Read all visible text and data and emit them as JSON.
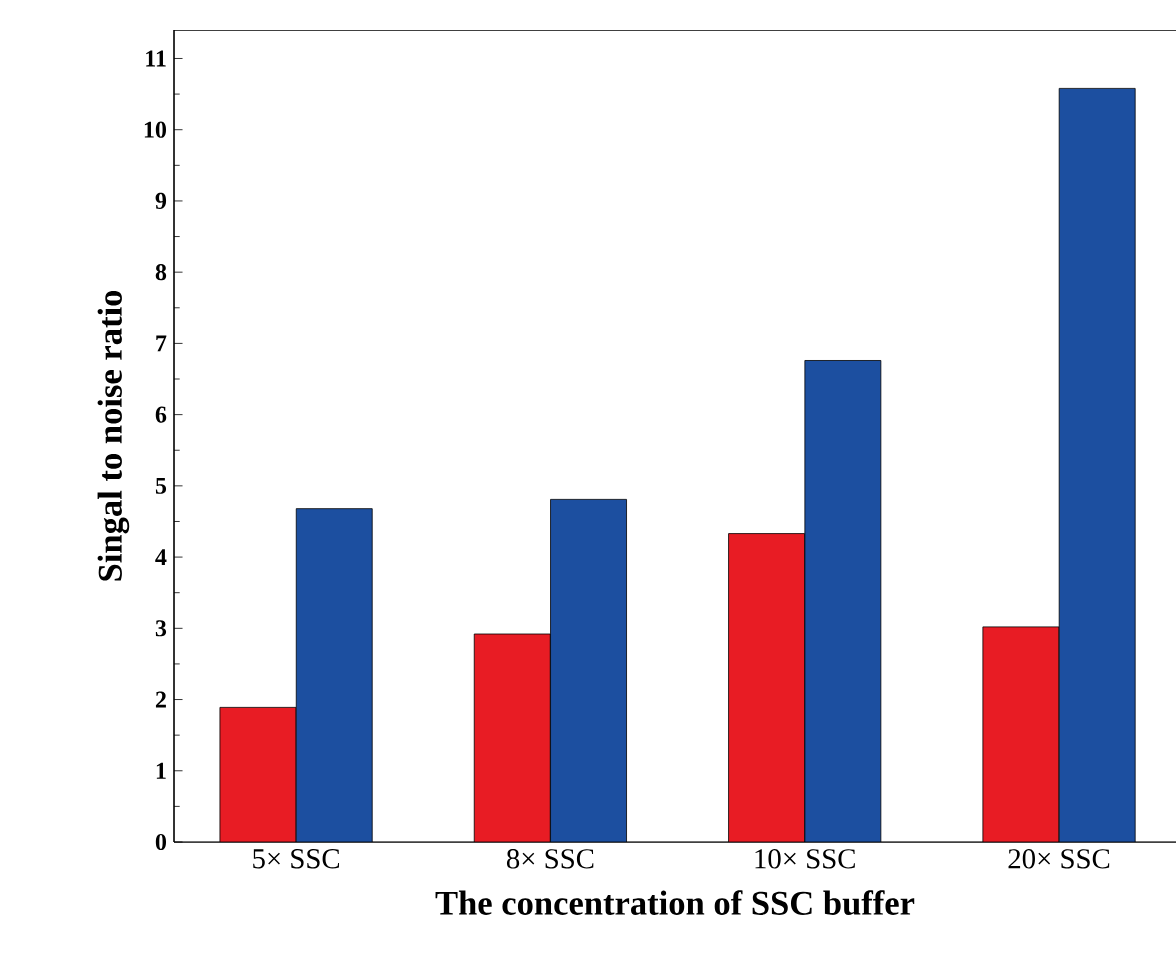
{
  "chart_data": {
    "type": "bar",
    "xlabel": "The concentration of SSC buffer",
    "ylabel": "Singal to noise ratio",
    "categories": [
      "5× SSC",
      "8× SSC",
      "10× SSC",
      "20× SSC"
    ],
    "series": [
      {
        "color": "#e81c24",
        "values": [
          1.89,
          2.92,
          4.33,
          3.02
        ]
      },
      {
        "color": "#1c4fa0",
        "values": [
          4.68,
          4.81,
          6.76,
          10.58
        ]
      }
    ],
    "ylim": [
      0,
      11.4
    ],
    "yticks": [
      0,
      1,
      2,
      3,
      4,
      5,
      6,
      7,
      8,
      9,
      10,
      11
    ]
  }
}
